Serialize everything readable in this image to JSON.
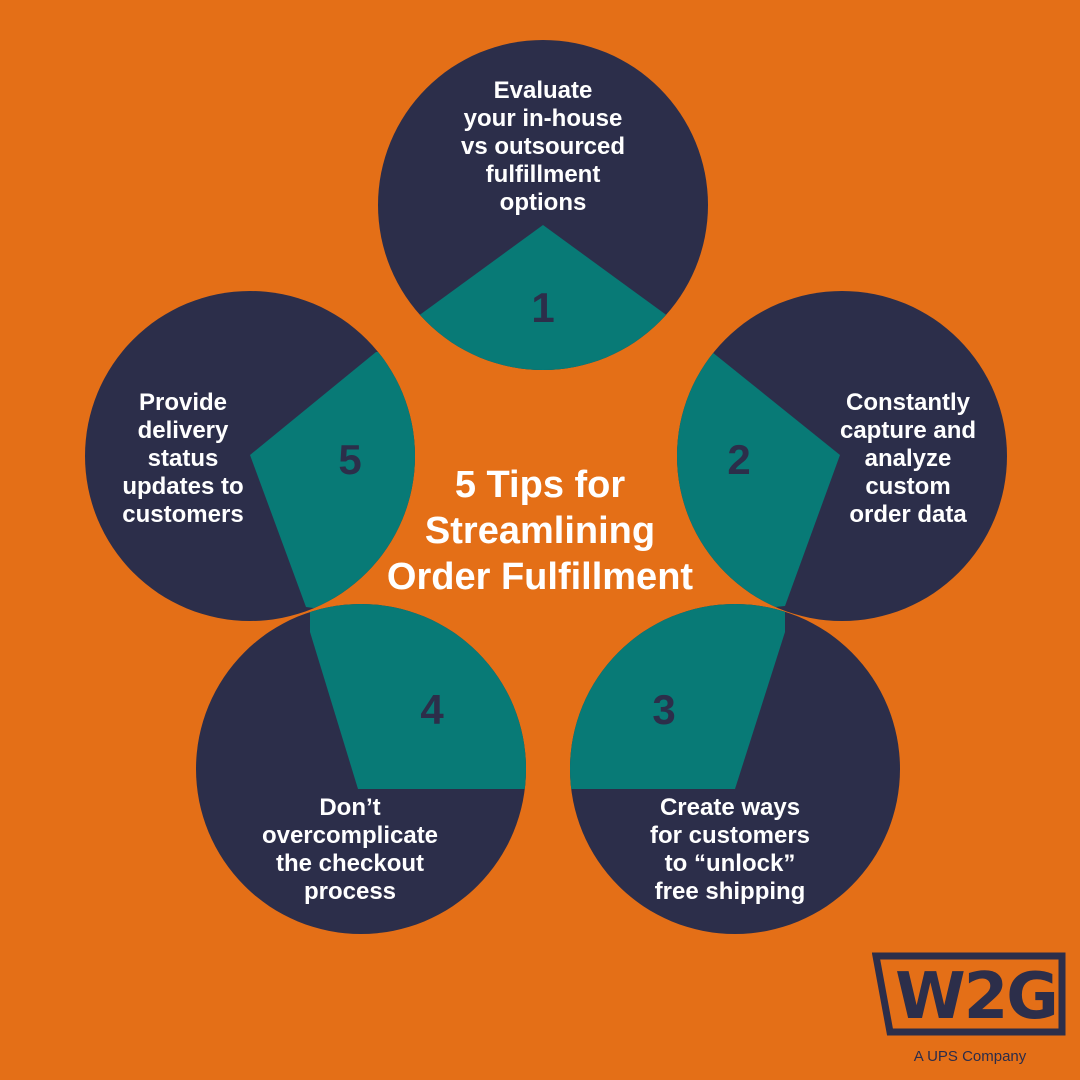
{
  "title": "5 Tips for\nStreamlining\nOrder Fulfillment",
  "tips": [
    {
      "number": "1",
      "text": "Evaluate\nyour in-house\nvs outsourced\nfulfillment\noptions"
    },
    {
      "number": "2",
      "text": "Constantly\ncapture and\nanalyze\ncustom\norder data"
    },
    {
      "number": "3",
      "text": "Create ways\nfor customers\nto “unlock”\nfree shipping"
    },
    {
      "number": "4",
      "text": "Don’t\novercomplicate\nthe checkout\nprocess"
    },
    {
      "number": "5",
      "text": "Provide\ndelivery\nstatus\nupdates to\ncustomers"
    }
  ],
  "logo": {
    "text": "W2G",
    "tagline": "A UPS Company"
  },
  "colors": {
    "background": "#E46F17",
    "circle": "#2C2E4A",
    "accent": "#087A76",
    "text": "#FFFFFF"
  }
}
